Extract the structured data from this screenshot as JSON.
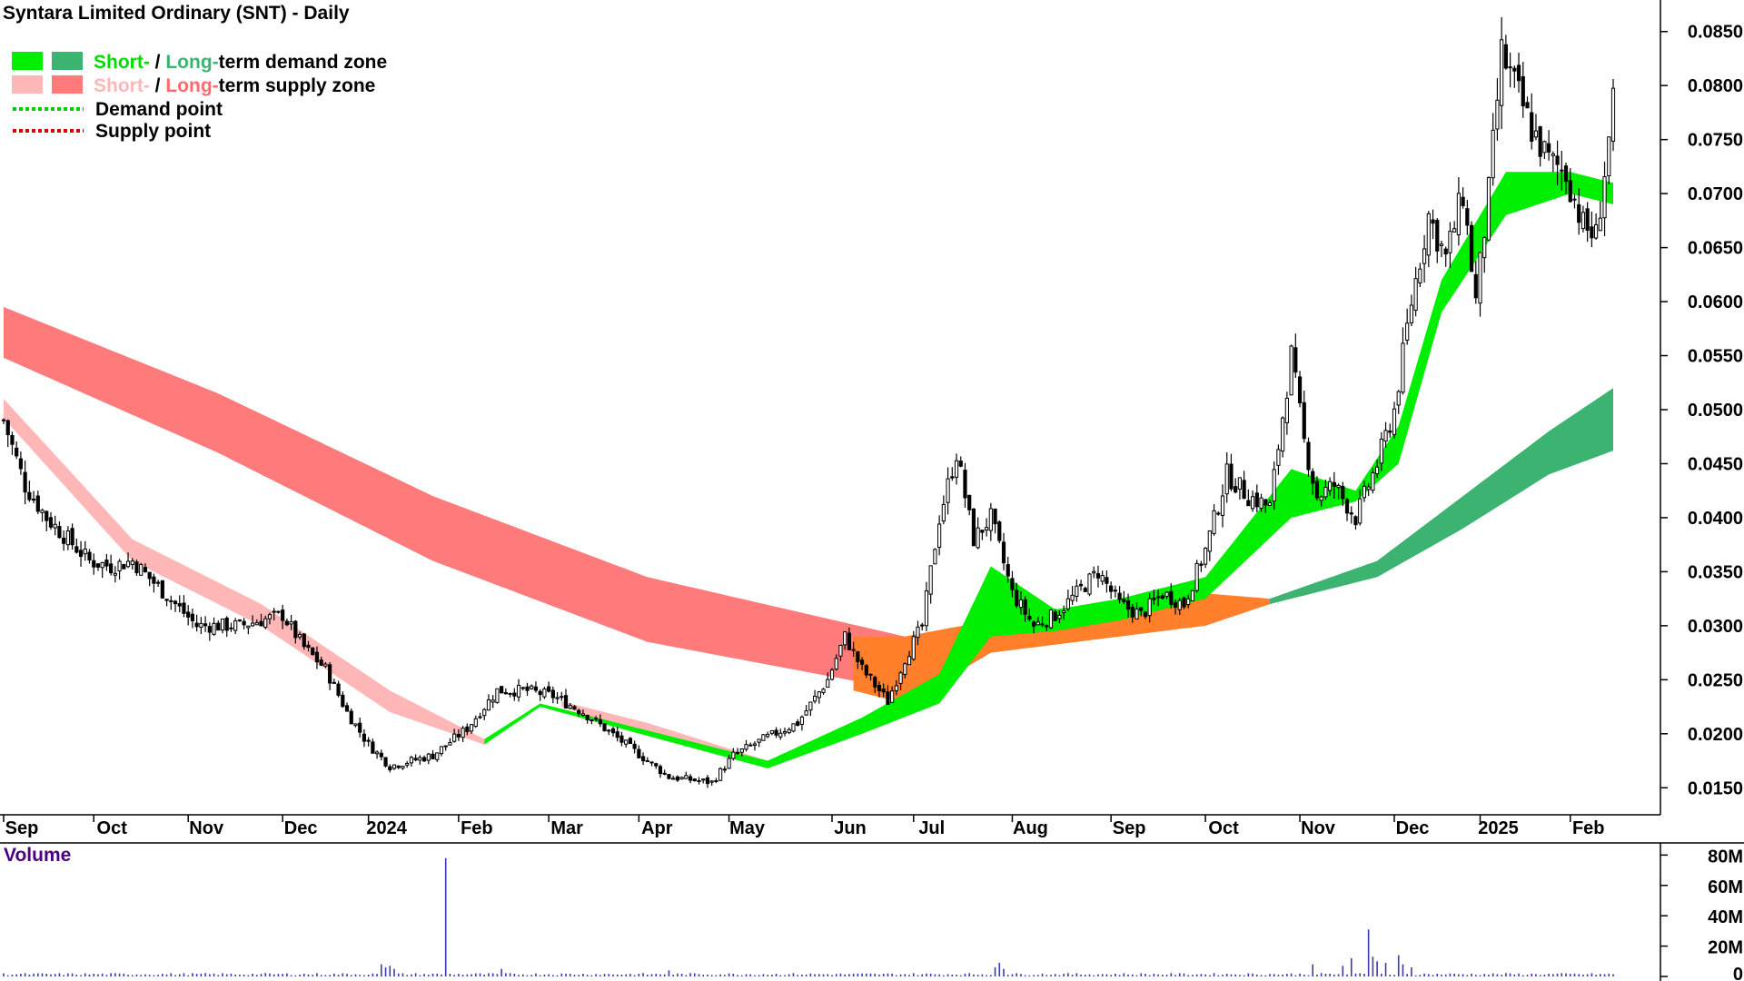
{
  "colors": {
    "short_demand": "#00ee00",
    "long_demand": "#3cb371",
    "short_supply": "#ffb6b6",
    "long_supply": "#ff7b7b",
    "overlap": "#ff7f2a",
    "demand_point": "#00cc00",
    "supply_point": "#dd0000",
    "volume": "#3a3aaa",
    "volume_title": "#4b0082"
  },
  "chart_data": {
    "type": "candlestick",
    "title": "Syntara Limited Ordinary (SNT) - Daily",
    "legend": [
      {
        "short": "Short-",
        "sep": " / ",
        "long": "Long-",
        "rest": "term demand zone",
        "kind": "demand"
      },
      {
        "short": "Short-",
        "sep": " / ",
        "long": "Long-",
        "rest": "term supply zone",
        "kind": "supply"
      },
      {
        "label": "Demand point",
        "kind": "demand-point"
      },
      {
        "label": "Supply point",
        "kind": "supply-point"
      }
    ],
    "y_ticks": [
      "0.0850",
      "0.0800",
      "0.0750",
      "0.0700",
      "0.0650",
      "0.0600",
      "0.0550",
      "0.0500",
      "0.0450",
      "0.0400",
      "0.0350",
      "0.0300",
      "0.0250",
      "0.0200",
      "0.0150"
    ],
    "ylim": [
      0.0125,
      0.0875
    ],
    "months": [
      {
        "label": "Sep",
        "index": 0
      },
      {
        "label": "Oct",
        "index": 21
      },
      {
        "label": "Nov",
        "index": 43
      },
      {
        "label": "Dec",
        "index": 65
      },
      {
        "label": "2024",
        "index": 85
      },
      {
        "label": "Feb",
        "index": 106
      },
      {
        "label": "Mar",
        "index": 127
      },
      {
        "label": "Apr",
        "index": 148
      },
      {
        "label": "May",
        "index": 169
      },
      {
        "label": "Jun",
        "index": 193
      },
      {
        "label": "Jul",
        "index": 212
      },
      {
        "label": "Aug",
        "index": 235
      },
      {
        "label": "Sep",
        "index": 258
      },
      {
        "label": "Oct",
        "index": 280
      },
      {
        "label": "Nov",
        "index": 302
      },
      {
        "label": "Dec",
        "index": 324
      },
      {
        "label": "2025",
        "index": 344
      },
      {
        "label": "Feb",
        "index": 365
      }
    ],
    "price_keys": [
      [
        0,
        0.049
      ],
      [
        5,
        0.043
      ],
      [
        10,
        0.04
      ],
      [
        15,
        0.038
      ],
      [
        20,
        0.036
      ],
      [
        25,
        0.0355
      ],
      [
        30,
        0.036
      ],
      [
        35,
        0.034
      ],
      [
        40,
        0.032
      ],
      [
        45,
        0.03
      ],
      [
        55,
        0.03
      ],
      [
        65,
        0.031
      ],
      [
        70,
        0.028
      ],
      [
        75,
        0.026
      ],
      [
        80,
        0.022
      ],
      [
        85,
        0.019
      ],
      [
        90,
        0.017
      ],
      [
        95,
        0.0175
      ],
      [
        100,
        0.018
      ],
      [
        108,
        0.0205
      ],
      [
        115,
        0.024
      ],
      [
        122,
        0.024
      ],
      [
        128,
        0.0235
      ],
      [
        135,
        0.022
      ],
      [
        145,
        0.019
      ],
      [
        155,
        0.016
      ],
      [
        165,
        0.0155
      ],
      [
        170,
        0.018
      ],
      [
        177,
        0.0195
      ],
      [
        185,
        0.021
      ],
      [
        192,
        0.025
      ],
      [
        196,
        0.029
      ],
      [
        200,
        0.026
      ],
      [
        206,
        0.023
      ],
      [
        210,
        0.027
      ],
      [
        214,
        0.03
      ],
      [
        218,
        0.04
      ],
      [
        222,
        0.046
      ],
      [
        226,
        0.038
      ],
      [
        230,
        0.04
      ],
      [
        235,
        0.033
      ],
      [
        240,
        0.03
      ],
      [
        245,
        0.031
      ],
      [
        250,
        0.033
      ],
      [
        255,
        0.035
      ],
      [
        260,
        0.032
      ],
      [
        265,
        0.031
      ],
      [
        270,
        0.033
      ],
      [
        275,
        0.032
      ],
      [
        280,
        0.037
      ],
      [
        285,
        0.044
      ],
      [
        290,
        0.042
      ],
      [
        295,
        0.041
      ],
      [
        300,
        0.055
      ],
      [
        303,
        0.047
      ],
      [
        306,
        0.042
      ],
      [
        310,
        0.043
      ],
      [
        315,
        0.04
      ],
      [
        320,
        0.045
      ],
      [
        324,
        0.05
      ],
      [
        328,
        0.06
      ],
      [
        332,
        0.068
      ],
      [
        336,
        0.064
      ],
      [
        340,
        0.07
      ],
      [
        343,
        0.06
      ],
      [
        346,
        0.07
      ],
      [
        349,
        0.083
      ],
      [
        352,
        0.08
      ],
      [
        356,
        0.076
      ],
      [
        360,
        0.073
      ],
      [
        364,
        0.072
      ],
      [
        368,
        0.067
      ],
      [
        371,
        0.066
      ],
      [
        375,
        0.078
      ]
    ],
    "zones": {
      "long_supply": {
        "start": 0,
        "end": 210,
        "top": [
          [
            0,
            0.0595
          ],
          [
            50,
            0.0515
          ],
          [
            100,
            0.042
          ],
          [
            150,
            0.0345
          ],
          [
            210,
            0.029
          ]
        ],
        "bottom": [
          [
            0,
            0.0548
          ],
          [
            50,
            0.046
          ],
          [
            100,
            0.036
          ],
          [
            150,
            0.0285
          ],
          [
            210,
            0.024
          ]
        ]
      },
      "short_supply": {
        "start": 0,
        "end": 112,
        "top": [
          [
            0,
            0.051
          ],
          [
            30,
            0.038
          ],
          [
            60,
            0.032
          ],
          [
            90,
            0.024
          ],
          [
            112,
            0.0195
          ]
        ],
        "bottom": [
          [
            0,
            0.0492
          ],
          [
            30,
            0.036
          ],
          [
            60,
            0.03
          ],
          [
            90,
            0.022
          ],
          [
            112,
            0.019
          ]
        ]
      },
      "short_supply_2": {
        "start": 130,
        "end": 178,
        "top": [
          [
            130,
            0.023
          ],
          [
            150,
            0.021
          ],
          [
            178,
            0.0175
          ]
        ],
        "bottom": [
          [
            130,
            0.0225
          ],
          [
            150,
            0.0198
          ],
          [
            178,
            0.0168
          ]
        ]
      },
      "short_demand": {
        "start": 112,
        "end": 375,
        "top": [
          [
            112,
            0.0195
          ],
          [
            125,
            0.0228
          ],
          [
            178,
            0.0175
          ],
          [
            200,
            0.0215
          ],
          [
            218,
            0.0255
          ],
          [
            230,
            0.0355
          ],
          [
            245,
            0.0315
          ],
          [
            260,
            0.0325
          ],
          [
            280,
            0.0345
          ],
          [
            300,
            0.0445
          ],
          [
            315,
            0.0425
          ],
          [
            325,
            0.0485
          ],
          [
            335,
            0.062
          ],
          [
            350,
            0.072
          ],
          [
            365,
            0.072
          ],
          [
            375,
            0.071
          ]
        ],
        "bottom": [
          [
            112,
            0.019
          ],
          [
            125,
            0.0225
          ],
          [
            178,
            0.0168
          ],
          [
            200,
            0.02
          ],
          [
            218,
            0.0228
          ],
          [
            230,
            0.029
          ],
          [
            245,
            0.0295
          ],
          [
            260,
            0.0305
          ],
          [
            280,
            0.0325
          ],
          [
            300,
            0.04
          ],
          [
            315,
            0.0415
          ],
          [
            325,
            0.045
          ],
          [
            335,
            0.059
          ],
          [
            350,
            0.068
          ],
          [
            365,
            0.07
          ],
          [
            375,
            0.069
          ]
        ]
      },
      "long_demand": {
        "start": 295,
        "end": 375,
        "top": [
          [
            295,
            0.0325
          ],
          [
            320,
            0.036
          ],
          [
            340,
            0.042
          ],
          [
            360,
            0.048
          ],
          [
            375,
            0.052
          ]
        ],
        "bottom": [
          [
            295,
            0.032
          ],
          [
            320,
            0.0345
          ],
          [
            340,
            0.039
          ],
          [
            360,
            0.044
          ],
          [
            375,
            0.0462
          ]
        ]
      },
      "overlap": {
        "start": 198,
        "end": 295,
        "top": [
          [
            198,
            0.029
          ],
          [
            210,
            0.029
          ],
          [
            230,
            0.0305
          ],
          [
            260,
            0.031
          ],
          [
            280,
            0.033
          ],
          [
            295,
            0.0325
          ]
        ],
        "bottom": [
          [
            198,
            0.024
          ],
          [
            210,
            0.0228
          ],
          [
            230,
            0.0275
          ],
          [
            260,
            0.029
          ],
          [
            280,
            0.03
          ],
          [
            295,
            0.032
          ]
        ]
      }
    },
    "volume": {
      "title": "Volume",
      "ticks": [
        "80M",
        "60M",
        "40M",
        "20M",
        "0"
      ],
      "ylim": [
        0,
        85
      ],
      "baseline": 1.5,
      "spikes": [
        [
          88,
          8
        ],
        [
          89,
          6
        ],
        [
          90,
          7
        ],
        [
          91,
          5
        ],
        [
          103,
          78
        ],
        [
          116,
          5
        ],
        [
          155,
          4
        ],
        [
          231,
          6
        ],
        [
          232,
          9
        ],
        [
          233,
          5
        ],
        [
          305,
          8
        ],
        [
          312,
          7
        ],
        [
          314,
          12
        ],
        [
          318,
          31
        ],
        [
          319,
          13
        ],
        [
          320,
          10
        ],
        [
          322,
          9
        ],
        [
          325,
          14
        ],
        [
          326,
          8
        ],
        [
          328,
          6
        ]
      ]
    }
  }
}
